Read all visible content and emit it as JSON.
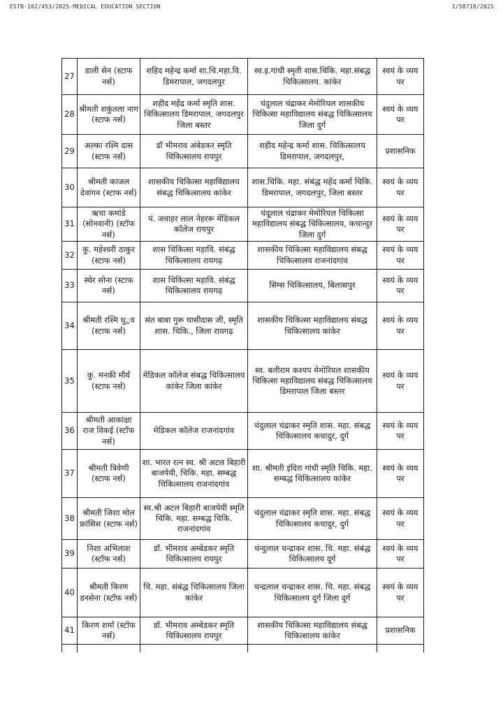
{
  "page_header": {
    "left": "ESTB-102/453/2025-MEDICAL EDUCATION SECTION",
    "right": "I/58718/2025"
  },
  "colors": {
    "text": "#1a1a1a",
    "border": "#1a1a1a",
    "background": "#ffffff"
  },
  "table": {
    "rows": [
      {
        "sr": "27",
        "name": "डाली सेन (स्टाफ नर्स)",
        "from_institution": "शहिद महेन्द्र कर्मा शा.चि.महा.वि. डिमरापाल, जगदलपुर",
        "to_institution": "स्व.इ.गांधी स्मृती शास.चिकि. महा.संबद्ध चिकित्सालय. कांकेर",
        "transfer_type": "स्वयं के व्यय पर"
      },
      {
        "sr": "28",
        "name": "श्रीमती शकुंतला नाग (स्टाफ नर्स)",
        "from_institution": "शहीद महेंद्र कर्मा स्मृति शास. चिकित्सालय डिमरापाल, जगदलपुर जिला बस्तर",
        "to_institution": "चंदुलाल चंद्राकर मेमोरियल शासकीय चिकित्सा महाविद्यालय संबद्ध चिकित्सालय जिला दुर्ग",
        "transfer_type": "स्वयं के व्यय पर"
      },
      {
        "sr": "29",
        "name": "अल्का रश्मि दास (स्टाफ नर्स)",
        "from_institution": "डॉ भीमराव अंबेडकर स्मृति चिकित्सालय रायपुर",
        "to_institution": "शहीद महेन्द्र कर्मा शास. चिकित्सालय डिमरापाल, जगदलपुर,",
        "transfer_type": "प्रशासनिक"
      },
      {
        "sr": "30",
        "name": "श्रीमती काजल देवांगन (स्टाफ नर्स)",
        "from_institution": "शासकीय चिकित्सा महाविद्यालय संबद्ध चिकित्सालय कांकेर",
        "to_institution": "शास.चिकि. महा. संबंद्ध महेंद कर्मा चिकि. डिमरापाल, जगदलपुर, जिला बस्तर",
        "transfer_type": "स्वयं के व्यय पर"
      },
      {
        "sr": "31",
        "name": "ऋचा कमांडे (सोनवानी) (स्टॉफ नर्स)",
        "from_institution": "पं. जवाहर लाल नेहररू मेंडिकल कॉलेज रायपुर",
        "to_institution": "चंदूलाल चंद्राकर मेमोरियल चिकित्सा महाविद्यालय संबद्ध चिकित्सालय, कचान्दुर जिला दुर्ग",
        "transfer_type": "स्वयं के व्यय पर"
      },
      {
        "sr": "32",
        "name": "कु. महेश्वरी ठाकुर (स्टाफ नर्स)",
        "from_institution": "शास चिकित्सा महावि. संबंद्ध चिकित्सालय रायगढ़",
        "to_institution": "शासकीय चिकित्सा महाविद्यालय संबद्ध चिकित्सालय राजनांदगांव",
        "transfer_type": "स्वयं के व्यय पर"
      },
      {
        "sr": "33",
        "name": "स्थेर सोना (स्टाफ नर्स)",
        "from_institution": "शास चिकित्सा महावि. संबंद्ध चिकित्सालय रायगढ़",
        "to_institution": "सिम्स चिकित्सालय, बिलासपुर",
        "transfer_type": "स्वयं के व्यय पर"
      },
      {
        "sr": "34",
        "name": "श्रीमती रश्मि धु◌्रव (स्टाफ नर्स)",
        "from_institution": "संत बाबा गुरू घासीदास जी, स्मृति शास. चिकि., जिला रायगढ़",
        "to_institution": "शासकीय चिकित्सा महाविद्यालय संबद्ध चिकित्सालय कांकेर",
        "transfer_type": "स्वयं के व्यय पर"
      },
      {
        "sr": "35",
        "name": "कु. मनकी मौर्य (स्टाफ नर्स)",
        "from_institution": "मेडिकल कॉलेज संबद्ध चिकित्सालय कांकेर जिला कांकेर",
        "to_institution": "स्व. बलीराम कश्यप मेमोरियल शासकीय चिकित्सा महाविद्यालय संबद्ध चिकित्सालय डिमरापाल जिला बस्तर",
        "transfer_type": "स्वयं के व्यय पर"
      },
      {
        "sr": "36",
        "name": "श्रीमती आकांक्षा राज विकई (स्टॉफ नर्स)",
        "from_institution": "मेडिकल कॉलेज राजनांदगांव",
        "to_institution": "चंदुलाल चंद्राकर स्मृति शास. महा. संबद्ध चिकित्सालय कचादुर, दुर्ग",
        "transfer_type": "स्वयं के व्यय पर"
      },
      {
        "sr": "37",
        "name": "श्रीमती त्रिवेणी (स्टाफ नर्स)",
        "from_institution": "शा. भारत रत्न स्व. श्री अटल बिहारी बाजपेयी, चिकि. महा. सम्बद्ध चिकित्सालय राजनांदगांव",
        "to_institution": "शा. श्रीमती इंदिरा गांधी स्मृति चिकि. महा. सम्बद्ध चिकित्सालय कांकेर",
        "transfer_type": "स्वयं के व्यय पर"
      },
      {
        "sr": "38",
        "name": "श्रीमती जिशा मोल फ्रांसिस (स्टाफ नर्स)",
        "from_institution": "स्व.श्री अटल बिहारी बाजपेयी स्मृति चिकि. महा. सम्बद्ध चिकि. राजनांदगांव",
        "to_institution": "चंदुलाल चंद्राकर स्मृति शास. महा. संबद्ध चिकित्सालय कचादुर, दुर्ग",
        "transfer_type": "स्वयं के व्यय पर"
      },
      {
        "sr": "39",
        "name": "निशा अभिलाश (स्टॉफ नर्स)",
        "from_institution": "डॉ. भीमराव अम्बेडकर स्मृति चिकित्सालय रायपुर",
        "to_institution": "चंन्दुलाल चन्द्राकर शास. चि. महा. संबंद्ध चिकित्सालय दूर्ग",
        "transfer_type": "स्वयं के व्यय पर"
      },
      {
        "sr": "40",
        "name": "श्रीमती किरण डनसेना (स्टॉफ नर्स)",
        "from_institution": "चि. महा. संबंद्ध चिकित्सालय जिला कांकेर",
        "to_institution": "चन्द्रलाल चन्द्राकर शास. चि. महा. संबद्ध चिकित्सालय दूर्ग जिला दूर्ग",
        "transfer_type": "स्वयं के व्यय पर"
      },
      {
        "sr": "41",
        "name": "किरण शर्मा (स्टॉफ नर्स)",
        "from_institution": "डॉ. भीमराव अम्बेडकर स्मृति चिकित्सालय रायपुर",
        "to_institution": "शासकीय चिकित्सा महाविद्यालय संबद्ध चिकित्सालय कांकेर",
        "transfer_type": "प्रशासनिक"
      }
    ]
  }
}
